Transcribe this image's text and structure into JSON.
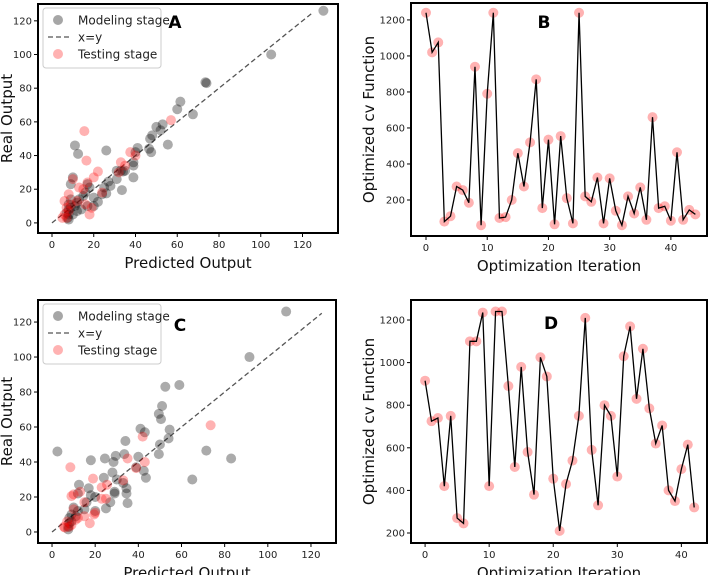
{
  "chart_data": [
    {
      "panel": "A",
      "type": "scatter",
      "xlabel": "Predicted Output",
      "ylabel": "Real Output",
      "xlim": [
        -6.7,
        137
      ],
      "ylim": [
        -6,
        130
      ],
      "xticks": [
        "0",
        "20",
        "40",
        "60",
        "80",
        "100",
        "120"
      ],
      "yticks": [
        "0",
        "20",
        "40",
        "60",
        "80",
        "100",
        "120"
      ],
      "legend": {
        "placement": "top-left",
        "entries": [
          "Modeling stage",
          "x=y",
          "Testing stage"
        ]
      },
      "reference_line": {
        "label": "x=y",
        "from": [
          0,
          0
        ],
        "to": [
          125,
          125
        ]
      },
      "series": [
        {
          "name": "Modeling stage",
          "color": "#000000",
          "points": [
            [
              130,
              126
            ],
            [
              105,
              100
            ],
            [
              73.5,
              83.5
            ],
            [
              74,
              83
            ],
            [
              61.5,
              72
            ],
            [
              60,
              67.5
            ],
            [
              67.5,
              64.5
            ],
            [
              55.5,
              46.5
            ],
            [
              53,
              58.5
            ],
            [
              50,
              57
            ],
            [
              52,
              55
            ],
            [
              48,
              52
            ],
            [
              47,
              50
            ],
            [
              47.5,
              42
            ],
            [
              46.5,
              44
            ],
            [
              41,
              44.5
            ],
            [
              40,
              42
            ],
            [
              39,
              36
            ],
            [
              39,
              34
            ],
            [
              39,
              27
            ],
            [
              34,
              30.5
            ],
            [
              33,
              31
            ],
            [
              31,
              31
            ],
            [
              31,
              26
            ],
            [
              33.5,
              19.5
            ],
            [
              26,
              43
            ],
            [
              11,
              46
            ],
            [
              12.5,
              41
            ],
            [
              27,
              24.5
            ],
            [
              25,
              21
            ],
            [
              26,
              17.5
            ],
            [
              22,
              12.5
            ],
            [
              20,
              15
            ],
            [
              17,
              23
            ],
            [
              18,
              21
            ],
            [
              16,
              18
            ],
            [
              15,
              16
            ],
            [
              13,
              14
            ],
            [
              12,
              12
            ],
            [
              11,
              10
            ],
            [
              10,
              27
            ],
            [
              9,
              23
            ],
            [
              9,
              14
            ],
            [
              8,
              11
            ],
            [
              8,
              8
            ],
            [
              8,
              5
            ],
            [
              7.5,
              3
            ],
            [
              8,
              2
            ],
            [
              7,
              6
            ],
            [
              9,
              9
            ],
            [
              10,
              5
            ],
            [
              12,
              7
            ],
            [
              14,
              8
            ],
            [
              17,
              10
            ],
            [
              20,
              10
            ],
            [
              24,
              17
            ],
            [
              28,
              22
            ],
            [
              35,
              31
            ]
          ]
        },
        {
          "name": "Testing stage",
          "color": "#ff0000",
          "points": [
            [
              15.5,
              54.5
            ],
            [
              57,
              61
            ],
            [
              16.5,
              37
            ],
            [
              37.5,
              42
            ],
            [
              40,
              40
            ],
            [
              33,
              36
            ],
            [
              32,
              30
            ],
            [
              22,
              30.5
            ],
            [
              20,
              27
            ],
            [
              17,
              24
            ],
            [
              13,
              21
            ],
            [
              15,
              20
            ],
            [
              10,
              26
            ],
            [
              8,
              17
            ],
            [
              24,
              18
            ],
            [
              16,
              11
            ],
            [
              19,
              9
            ],
            [
              18,
              5
            ],
            [
              6,
              13
            ],
            [
              7,
              9
            ],
            [
              6,
              5
            ],
            [
              5,
              3
            ],
            [
              7,
              3
            ],
            [
              8,
              7
            ],
            [
              9,
              11
            ],
            [
              12,
              13
            ],
            [
              35,
              34
            ]
          ]
        }
      ]
    },
    {
      "panel": "B",
      "type": "line",
      "xlabel": "Optimization Iteration",
      "ylabel": "Optimized cv Function",
      "xlim": [
        -2.45,
        45.9
      ],
      "ylim": [
        0,
        1294
      ],
      "xticks": [
        "0",
        "10",
        "20",
        "30",
        "40"
      ],
      "yticks": [
        "200",
        "400",
        "600",
        "800",
        "1000",
        "1200"
      ],
      "series": [
        {
          "name": "cv",
          "color": "#000000",
          "marker_color": "#ff0000",
          "values": [
            1240,
            1020,
            1075,
            80,
            110,
            275,
            255,
            185,
            940,
            60,
            790,
            1240,
            100,
            105,
            200,
            460,
            275,
            520,
            870,
            155,
            535,
            65,
            555,
            210,
            70,
            1240,
            220,
            190,
            325,
            70,
            320,
            140,
            60,
            220,
            125,
            270,
            90,
            660,
            155,
            165,
            85,
            465,
            90,
            145,
            120
          ]
        }
      ]
    },
    {
      "panel": "C",
      "type": "scatter",
      "xlabel": "Predicted Output",
      "ylabel": "Real Output",
      "xlim": [
        -6.5,
        131.6
      ],
      "ylim": [
        -6.3,
        132.6
      ],
      "xticks": [
        "0",
        "20",
        "40",
        "60",
        "80",
        "100",
        "120"
      ],
      "yticks": [
        "0",
        "20",
        "40",
        "60",
        "80",
        "100",
        "120"
      ],
      "legend": {
        "placement": "top-left",
        "entries": [
          "Modeling stage",
          "x=y",
          "Testing stage"
        ]
      },
      "reference_line": {
        "label": "x=y",
        "from": [
          0,
          0
        ],
        "to": [
          125,
          125
        ]
      },
      "series": [
        {
          "name": "Modeling stage",
          "color": "#000000",
          "points": [
            [
              108.5,
              126
            ],
            [
              91.5,
              100
            ],
            [
              59,
              84
            ],
            [
              52.5,
              83
            ],
            [
              51,
              72
            ],
            [
              49.5,
              67.5
            ],
            [
              50.5,
              64.5
            ],
            [
              54.5,
              58.5
            ],
            [
              54,
              53.5
            ],
            [
              50,
              50
            ],
            [
              49.5,
              44.5
            ],
            [
              41,
              59
            ],
            [
              43,
              57
            ],
            [
              42.5,
              35
            ],
            [
              43.5,
              31
            ],
            [
              40,
              43
            ],
            [
              39,
              37
            ],
            [
              34,
              52
            ],
            [
              33.5,
              44.5
            ],
            [
              29.5,
              43.5
            ],
            [
              28.5,
              40
            ],
            [
              28,
              34
            ],
            [
              24.5,
              42
            ],
            [
              18,
              41
            ],
            [
              2.5,
              46
            ],
            [
              71.5,
              46.5
            ],
            [
              83,
              42
            ],
            [
              65,
              30
            ],
            [
              34.5,
              25
            ],
            [
              34.5,
              22
            ],
            [
              35,
              16.5
            ],
            [
              29,
              22
            ],
            [
              29,
              23
            ],
            [
              27,
              17
            ],
            [
              25,
              13.5
            ],
            [
              24,
              31
            ],
            [
              20,
              20
            ],
            [
              17,
              25
            ],
            [
              18,
              21
            ],
            [
              12.5,
              27
            ],
            [
              12,
              22
            ],
            [
              16,
              17
            ],
            [
              15,
              13
            ],
            [
              12,
              12
            ],
            [
              10,
              14
            ],
            [
              9,
              10
            ],
            [
              8,
              8
            ],
            [
              8,
              5
            ],
            [
              7.5,
              3
            ],
            [
              7.5,
              1.5
            ],
            [
              9,
              6
            ],
            [
              11,
              9
            ],
            [
              20,
              12
            ],
            [
              30,
              30
            ],
            [
              33,
              28
            ]
          ]
        },
        {
          "name": "Testing stage",
          "color": "#ff0000",
          "points": [
            [
              73.5,
              61
            ],
            [
              42,
              54.5
            ],
            [
              8.5,
              37
            ],
            [
              35,
              42
            ],
            [
              43,
              40
            ],
            [
              39,
              36.5
            ],
            [
              33,
              29.5
            ],
            [
              19,
              30.5
            ],
            [
              23,
              25.5
            ],
            [
              25.5,
              27
            ],
            [
              13,
              23
            ],
            [
              9,
              20.5
            ],
            [
              10,
              21.5
            ],
            [
              15,
              17
            ],
            [
              25,
              19
            ],
            [
              23,
              19
            ],
            [
              20,
              11
            ],
            [
              19.5,
              10
            ],
            [
              17.5,
              5
            ],
            [
              15,
              9
            ],
            [
              11,
              7
            ],
            [
              12,
              8
            ],
            [
              8,
              3
            ],
            [
              5.5,
              3
            ],
            [
              6,
              2.5
            ],
            [
              7,
              6
            ],
            [
              10,
              13
            ],
            [
              9,
              4
            ]
          ]
        }
      ]
    },
    {
      "panel": "D",
      "type": "line",
      "xlabel": "Optimization Iteration",
      "ylabel": "Optimized cv Function",
      "xlim": [
        -2.2,
        44
      ],
      "ylim": [
        153,
        1294
      ],
      "xticks": [
        "0",
        "10",
        "20",
        "30",
        "40"
      ],
      "yticks": [
        "200",
        "400",
        "600",
        "800",
        "1000",
        "1200"
      ],
      "series": [
        {
          "name": "cv",
          "color": "#000000",
          "marker_color": "#ff0000",
          "values": [
            915,
            725,
            740,
            420,
            750,
            270,
            245,
            1100,
            1100,
            1235,
            420,
            1240,
            1240,
            890,
            510,
            980,
            580,
            380,
            1025,
            935,
            455,
            210,
            430,
            540,
            750,
            1210,
            590,
            330,
            800,
            750,
            465,
            1030,
            1170,
            830,
            1065,
            785,
            620,
            705,
            400,
            350,
            500,
            615,
            320
          ]
        }
      ]
    }
  ]
}
